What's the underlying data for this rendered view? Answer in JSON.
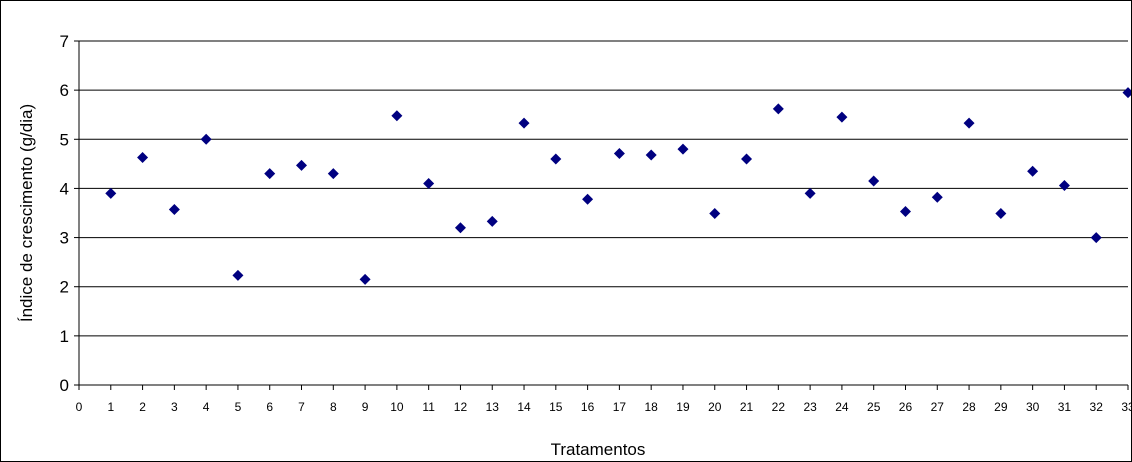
{
  "chart_data": {
    "type": "scatter",
    "xlabel": "Tratamentos",
    "ylabel": "Índice de crescimento (g/dia)",
    "xlim": [
      0,
      33
    ],
    "ylim": [
      0,
      7
    ],
    "x_ticks": [
      0,
      1,
      2,
      3,
      4,
      5,
      6,
      7,
      8,
      9,
      10,
      11,
      12,
      13,
      14,
      15,
      16,
      17,
      18,
      19,
      20,
      21,
      22,
      23,
      24,
      25,
      26,
      27,
      28,
      29,
      30,
      31,
      32,
      33
    ],
    "y_ticks": [
      0,
      1,
      2,
      3,
      4,
      5,
      6,
      7
    ],
    "grid": "horizontal",
    "marker": "diamond",
    "marker_color": "#000080",
    "series": [
      {
        "x": [
          1,
          2,
          3,
          4,
          5,
          6,
          7,
          8,
          9,
          10,
          11,
          12,
          13,
          14,
          15,
          16,
          17,
          18,
          19,
          20,
          21,
          22,
          23,
          24,
          25,
          26,
          27,
          28,
          29,
          30,
          31,
          32,
          33
        ],
        "values": [
          3.9,
          4.63,
          3.57,
          5.0,
          2.23,
          4.3,
          4.47,
          4.3,
          2.15,
          5.48,
          4.1,
          3.2,
          3.33,
          5.33,
          4.6,
          3.78,
          4.71,
          4.68,
          4.8,
          3.49,
          4.6,
          5.62,
          3.9,
          5.45,
          4.15,
          3.53,
          3.82,
          5.33,
          3.49,
          4.35,
          4.06,
          3.0,
          5.95
        ]
      }
    ]
  }
}
